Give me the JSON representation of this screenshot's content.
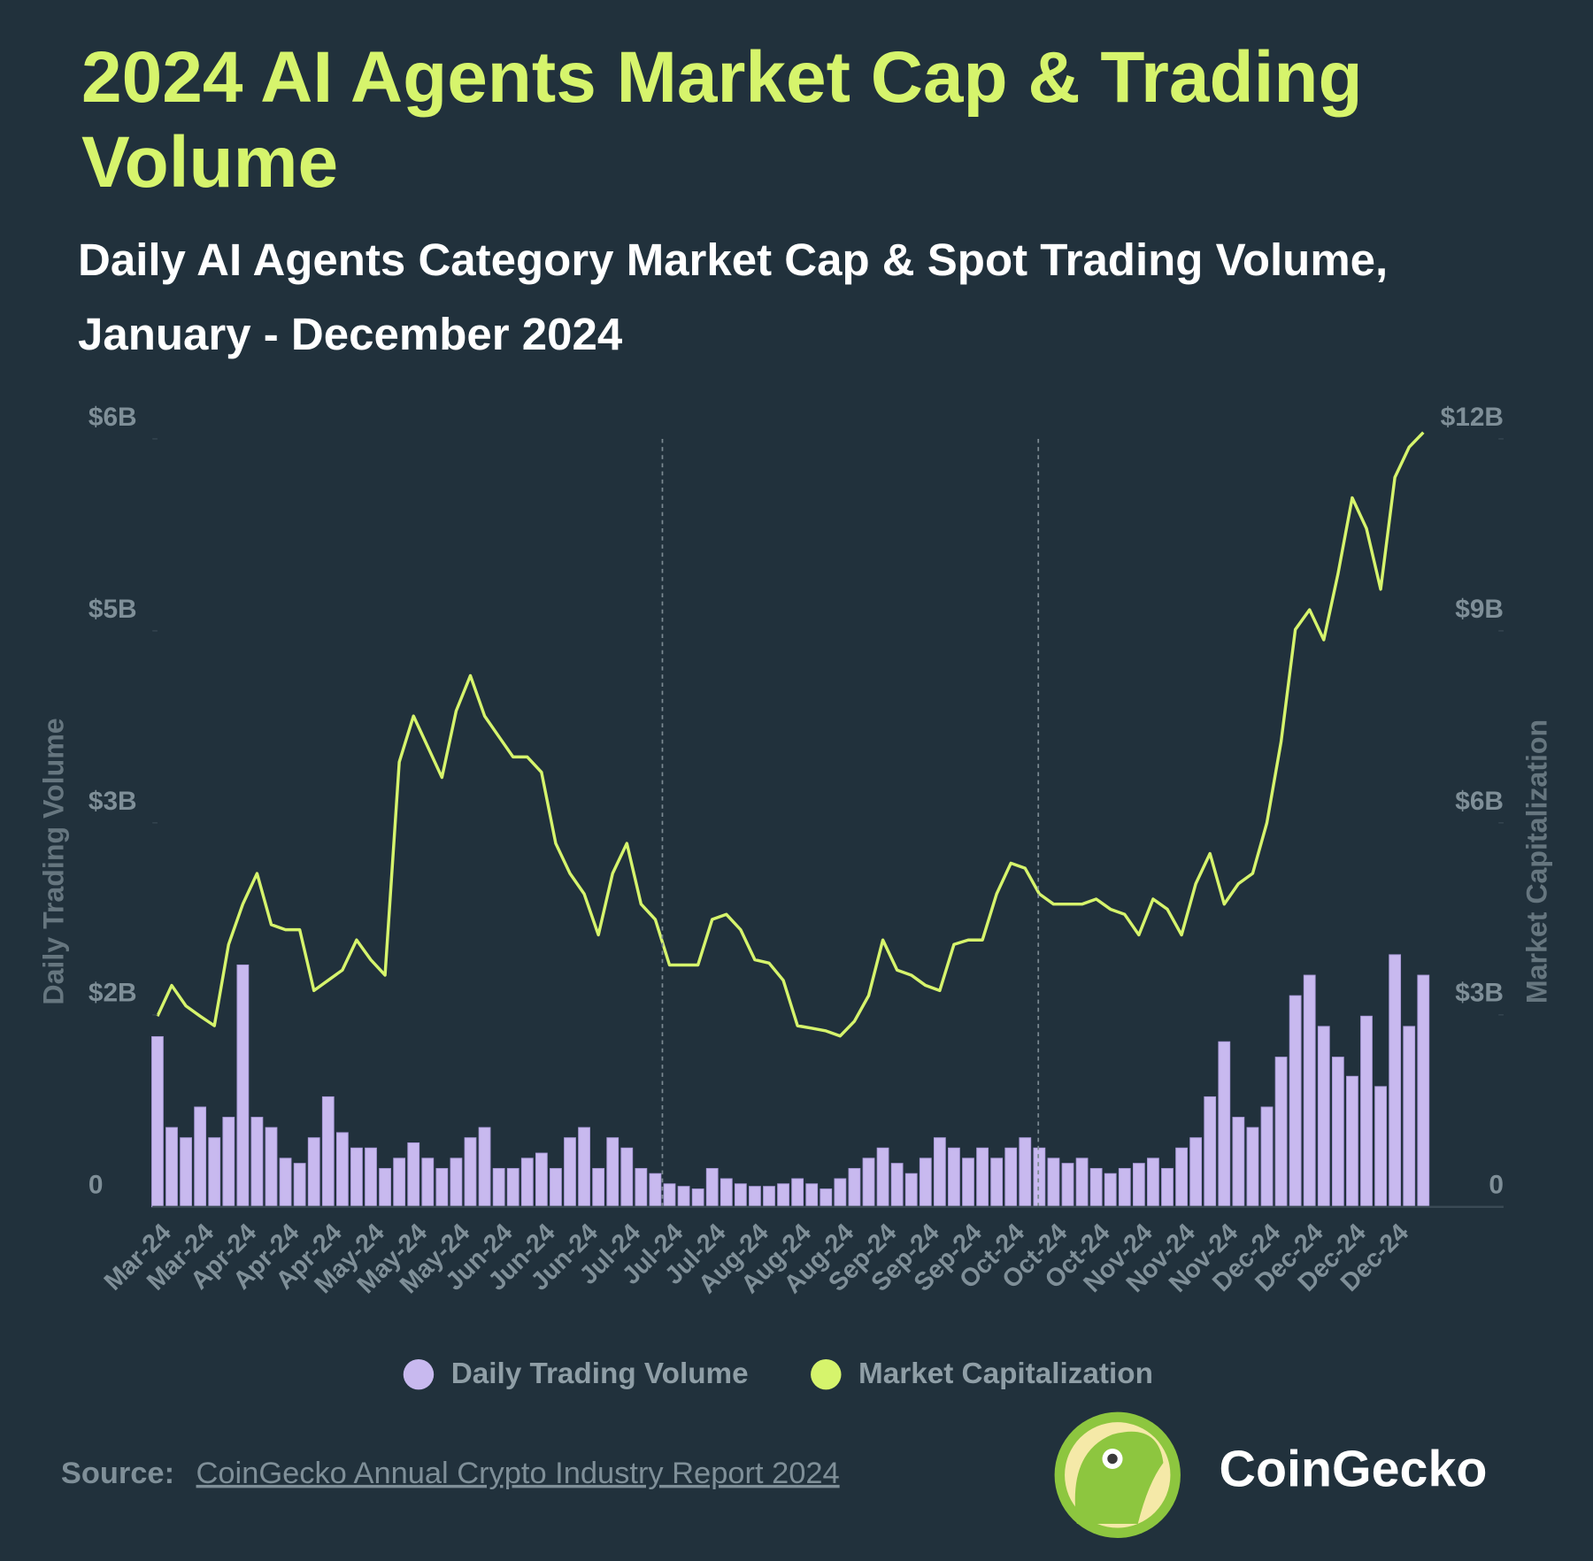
{
  "chart_data": {
    "type": "combo",
    "title": "2024 AI Agents Market Cap & Trading Volume",
    "subtitle": "Daily AI Agents Category Market Cap & Spot Trading Volume, January - December 2024",
    "ylabel": "Daily Trading Volume",
    "y2label": "Market Capitalization",
    "categories": [
      "Mar-24",
      null,
      null,
      "Mar-24",
      null,
      null,
      "Apr-24",
      null,
      null,
      "Apr-24",
      null,
      null,
      "Apr-24",
      null,
      null,
      "May-24",
      null,
      null,
      "May-24",
      null,
      null,
      "May-24",
      null,
      null,
      "Jun-24",
      null,
      null,
      "Jun-24",
      null,
      null,
      "Jun-24",
      null,
      null,
      "Jul-24",
      null,
      null,
      "Jul-24",
      null,
      null,
      "Jul-24",
      null,
      null,
      "Aug-24",
      null,
      null,
      "Aug-24",
      null,
      null,
      "Aug-24",
      null,
      null,
      "Sep-24",
      null,
      null,
      "Sep-24",
      null,
      null,
      "Sep-24",
      null,
      null,
      "Oct-24",
      null,
      null,
      "Oct-24",
      null,
      null,
      "Oct-24",
      null,
      null,
      "Nov-24",
      null,
      null,
      "Nov-24",
      null,
      null,
      "Nov-24",
      null,
      null,
      "Dec-24",
      null,
      null,
      "Dec-24",
      null,
      null,
      "Dec-24",
      null,
      null,
      "Dec-24",
      null,
      null
    ],
    "series": [
      {
        "name": "Daily Trading Volume",
        "type": "bar",
        "color": "#c8b9ef",
        "axis": "y",
        "values": [
          1.33,
          0.62,
          0.54,
          0.78,
          0.54,
          0.7,
          1.89,
          0.7,
          0.62,
          0.38,
          0.34,
          0.54,
          0.86,
          0.58,
          0.46,
          0.46,
          0.3,
          0.38,
          0.5,
          0.38,
          0.3,
          0.38,
          0.54,
          0.62,
          0.3,
          0.3,
          0.38,
          0.42,
          0.3,
          0.54,
          0.62,
          0.3,
          0.54,
          0.46,
          0.3,
          0.26,
          0.18,
          0.16,
          0.14,
          0.3,
          0.22,
          0.18,
          0.16,
          0.16,
          0.18,
          0.22,
          0.18,
          0.14,
          0.22,
          0.3,
          0.38,
          0.46,
          0.34,
          0.26,
          0.38,
          0.54,
          0.46,
          0.38,
          0.46,
          0.38,
          0.46,
          0.54,
          0.46,
          0.38,
          0.34,
          0.38,
          0.3,
          0.26,
          0.3,
          0.34,
          0.38,
          0.3,
          0.46,
          0.54,
          0.86,
          1.29,
          0.7,
          0.62,
          0.78,
          1.17,
          1.65,
          1.81,
          1.41,
          1.17,
          1.02,
          1.49,
          0.94,
          1.97,
          1.41,
          1.81
        ]
      },
      {
        "name": "Market Capitalization",
        "type": "line",
        "color": "#d6f46c",
        "axis": "y2",
        "values": [
          2.98,
          3.46,
          3.14,
          2.98,
          2.83,
          4.1,
          4.73,
          5.21,
          4.41,
          4.33,
          4.33,
          3.38,
          3.54,
          3.7,
          4.17,
          3.86,
          3.62,
          6.95,
          7.67,
          7.19,
          6.71,
          7.75,
          8.3,
          7.67,
          7.35,
          7.03,
          7.03,
          6.79,
          5.68,
          5.21,
          4.89,
          4.25,
          5.21,
          5.68,
          4.73,
          4.49,
          3.78,
          3.78,
          3.78,
          4.49,
          4.57,
          4.33,
          3.86,
          3.81,
          3.54,
          2.83,
          2.79,
          2.75,
          2.67,
          2.9,
          3.3,
          4.17,
          3.7,
          3.62,
          3.46,
          3.38,
          4.1,
          4.17,
          4.17,
          4.89,
          5.37,
          5.29,
          4.89,
          4.73,
          4.73,
          4.73,
          4.81,
          4.65,
          4.57,
          4.25,
          4.81,
          4.65,
          4.25,
          5.05,
          5.52,
          4.73,
          5.05,
          5.21,
          6.0,
          7.27,
          9.02,
          9.33,
          8.86,
          9.89,
          11.08,
          10.6,
          9.65,
          11.4,
          11.87,
          12.1
        ]
      }
    ],
    "ylim": [
      0,
      6
    ],
    "yticks": [
      0,
      {
        "value": 1.5,
        "label": "$2B"
      },
      {
        "value": 3,
        "label": "$3B"
      },
      {
        "value": 4.5,
        "label": "$5B"
      },
      {
        "value": 6,
        "label": "$6B"
      }
    ],
    "y2lim": [
      0,
      12
    ],
    "y2ticks": [
      0,
      {
        "value": 3,
        "label": "$3B"
      },
      {
        "value": 6,
        "label": "$6B"
      },
      {
        "value": 9,
        "label": "$9B"
      },
      {
        "value": 12,
        "label": "$12B"
      }
    ],
    "grid": false,
    "legend": "bottom"
  },
  "footer": {
    "source_label": "Source:",
    "source_text": "CoinGecko Annual Crypto Industry Report 2024",
    "brand": "CoinGecko"
  }
}
